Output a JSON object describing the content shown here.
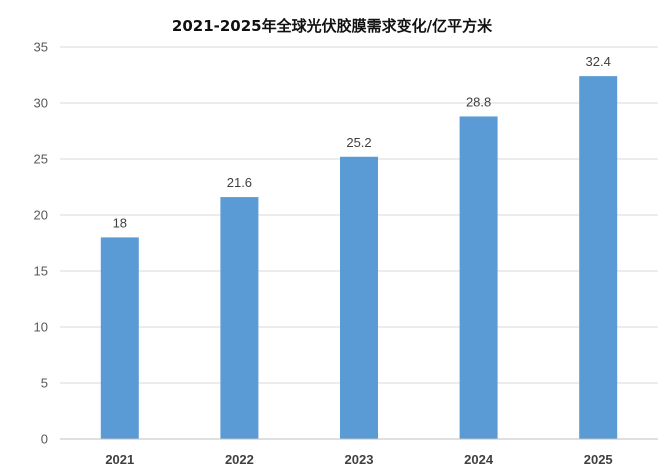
{
  "chart_data": {
    "type": "bar",
    "title": "2021-2025年全球光伏胶膜需求变化/亿平方米",
    "categories": [
      "2021",
      "2022",
      "2023",
      "2024",
      "2025"
    ],
    "values": [
      18,
      21.6,
      25.2,
      28.8,
      32.4
    ],
    "data_labels": [
      "18",
      "21.6",
      "25.2",
      "28.8",
      "32.4"
    ],
    "ylim": [
      0,
      35
    ],
    "yticks": [
      0,
      5,
      10,
      15,
      20,
      25,
      30,
      35
    ],
    "grid": true,
    "legend": "none",
    "bar_color": "#5b9bd5"
  }
}
